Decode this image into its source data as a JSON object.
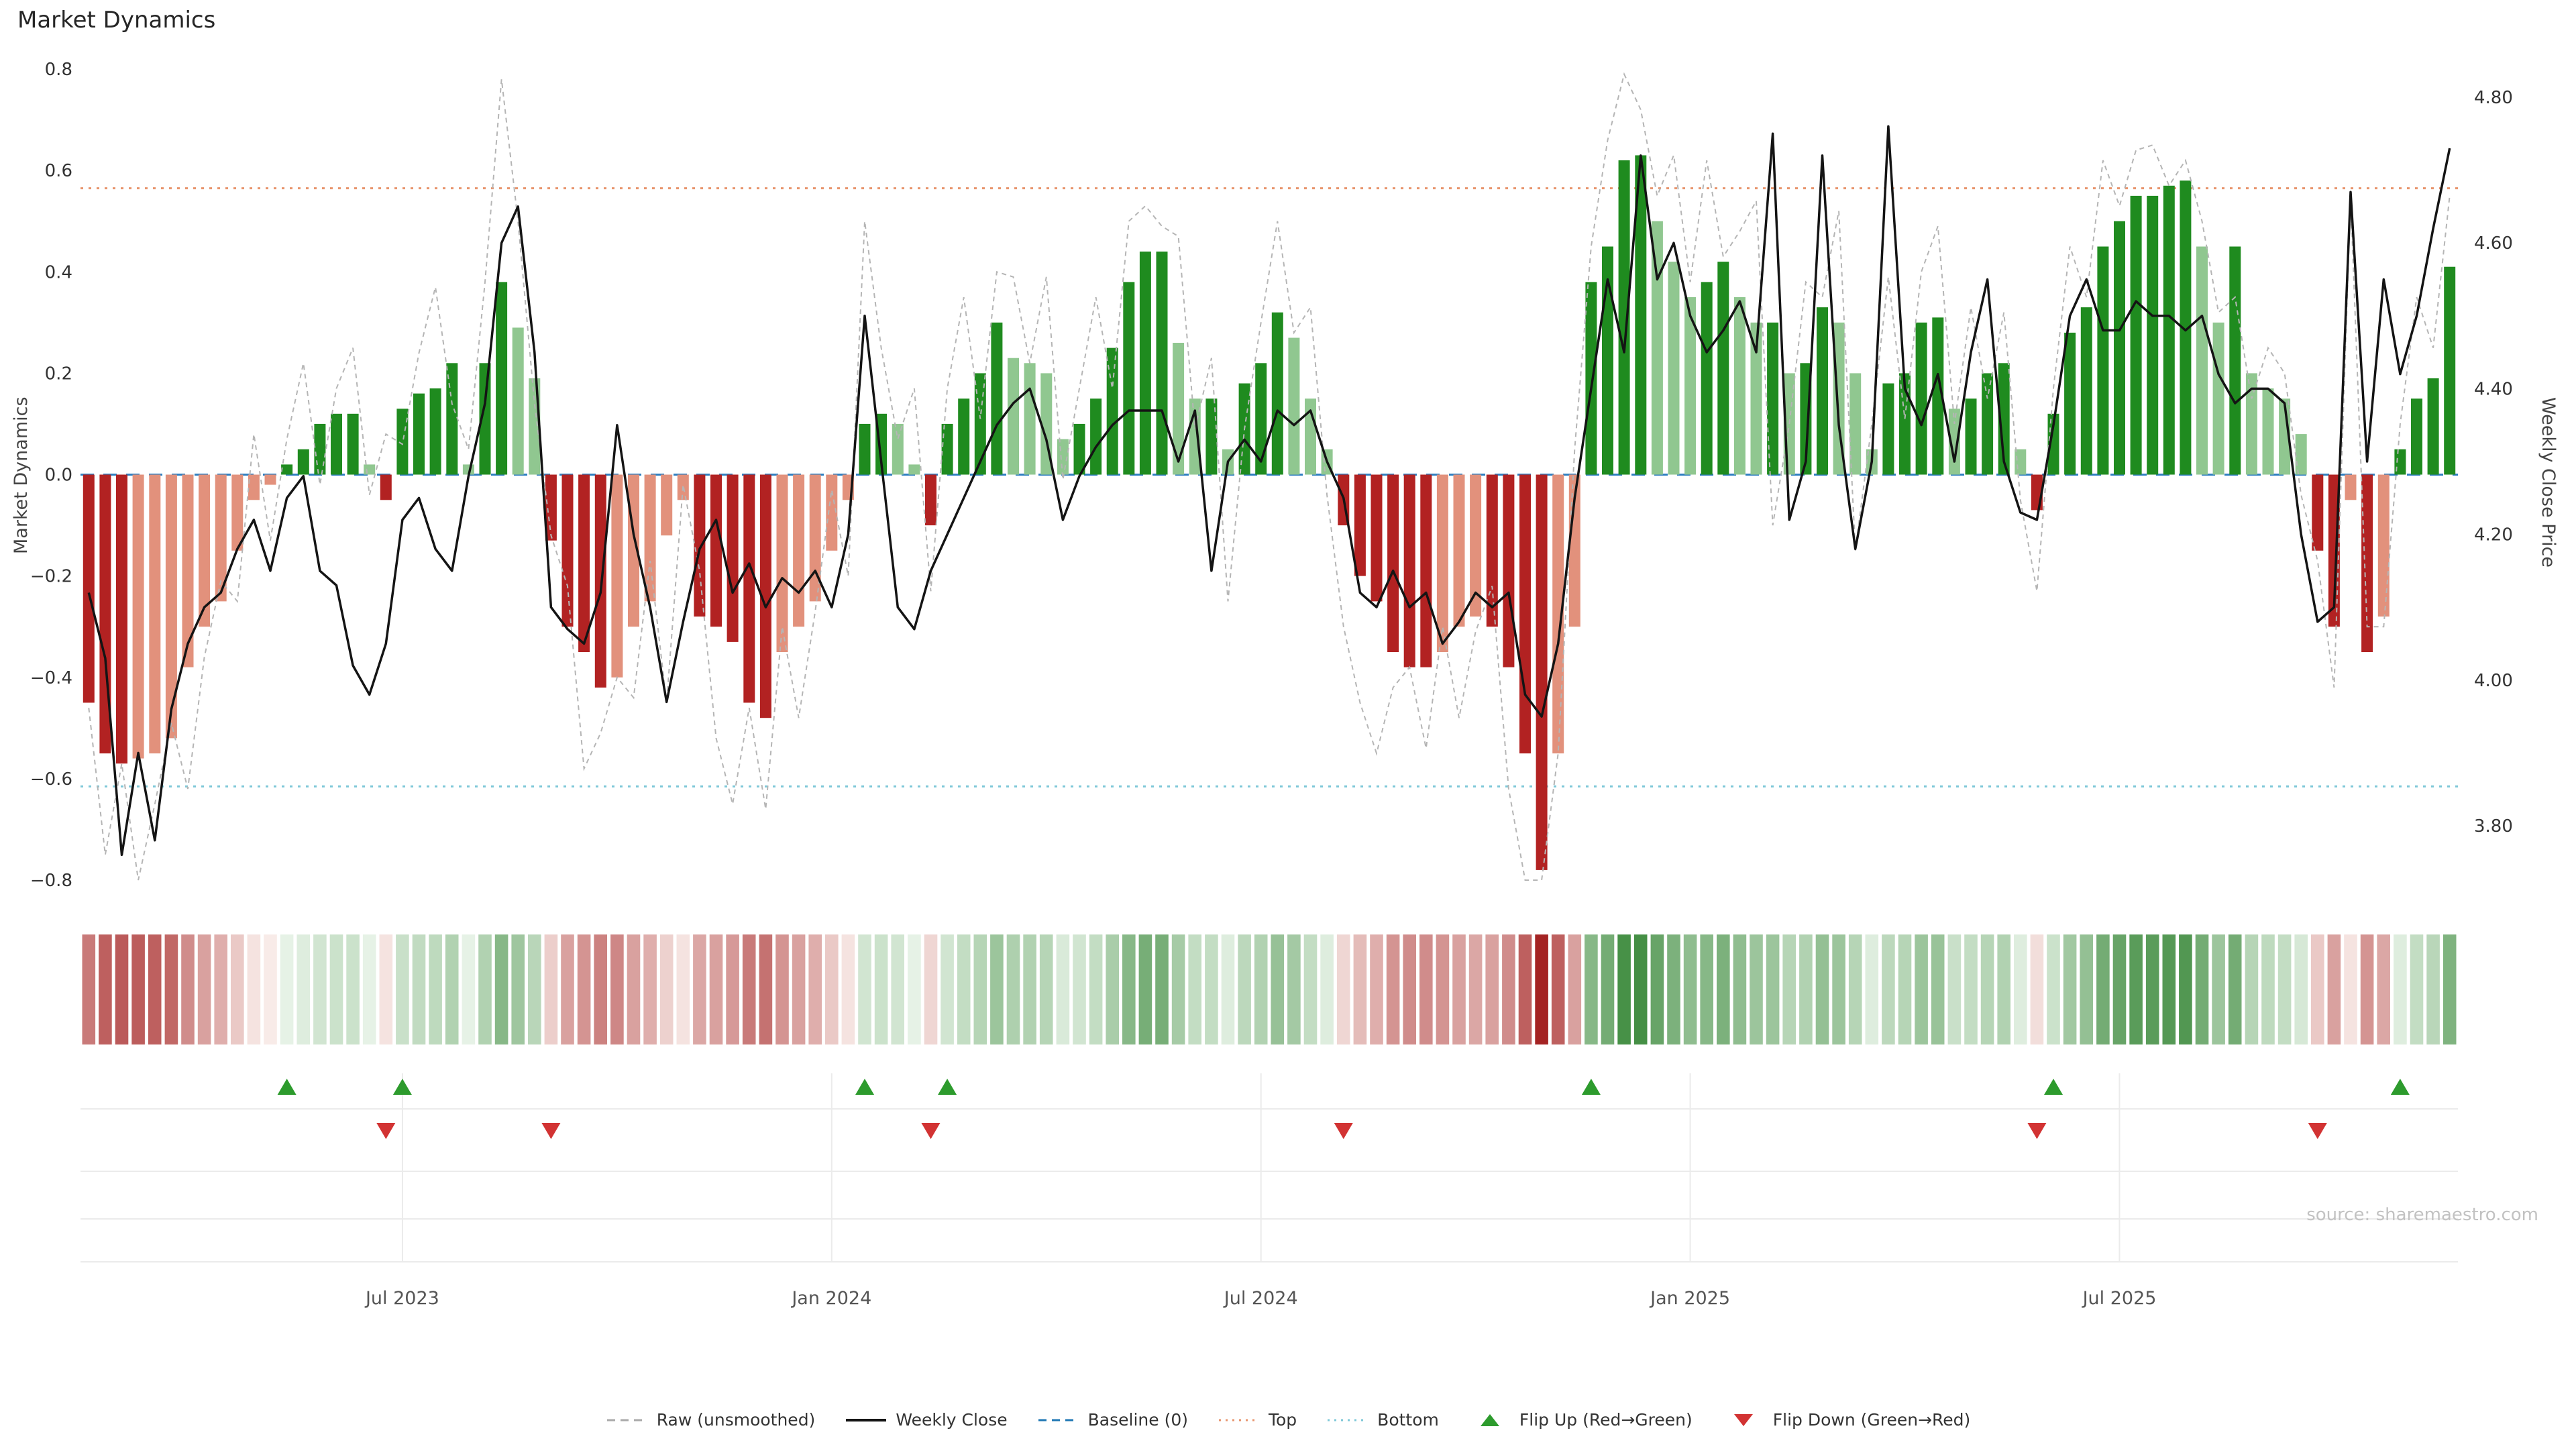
{
  "title": "Market Dynamics",
  "axes": {
    "left_label": "Market Dynamics",
    "right_label": "Weekly Close Price"
  },
  "source": "source: sharemaestro.com",
  "legend": [
    {
      "label": "Raw (unsmoothed)",
      "type": "line-dashed",
      "color": "#aaaaaa",
      "icon": "raw-line-swatch"
    },
    {
      "label": "Weekly Close",
      "type": "line-solid",
      "color": "#141414",
      "icon": "weekly-close-line-swatch"
    },
    {
      "label": "Baseline (0)",
      "type": "line-dashed",
      "color": "#1f77b4",
      "icon": "baseline-swatch"
    },
    {
      "label": "Top",
      "type": "line-dotted",
      "color": "#e8956d",
      "icon": "top-line-swatch"
    },
    {
      "label": "Bottom",
      "type": "line-dotted",
      "color": "#7ec8d8",
      "icon": "bottom-line-swatch"
    },
    {
      "label": "Flip Up (Red→Green)",
      "type": "triangle-up",
      "color": "#2d9b2d",
      "icon": "flip-up-triangle-icon"
    },
    {
      "label": "Flip Down (Green→Red)",
      "type": "triangle-down",
      "color": "#d23333",
      "icon": "flip-down-triangle-icon"
    }
  ],
  "chart_data": {
    "type": "bar",
    "title": "Market Dynamics",
    "ylabel_left": "Market Dynamics",
    "ylabel_right": "Weekly Close Price",
    "ylim_left": [
      -0.8,
      0.8
    ],
    "ylim_right": [
      3.8,
      4.8
    ],
    "baseline": 0,
    "top_threshold": 0.565,
    "bottom_threshold": -0.615,
    "left_ticks": [
      0.8,
      0.6,
      0.4,
      0.2,
      0,
      -0.2,
      -0.4,
      -0.6,
      -0.8
    ],
    "right_ticks": [
      4.8,
      4.6,
      4.4,
      4.2,
      4.0,
      3.8
    ],
    "x_tick_labels": [
      "Jul 2023",
      "Jan 2024",
      "Jul 2024",
      "Jan 2025",
      "Jul 2025"
    ],
    "x_tick_weeks": [
      20,
      46,
      72,
      98,
      124
    ],
    "n_weeks": 144,
    "flip_up_weeks": [
      13,
      20,
      48,
      53,
      92,
      120,
      141
    ],
    "flip_down_weeks": [
      19,
      29,
      52,
      77,
      119,
      136
    ],
    "series": [
      {
        "name": "Market Dynamics (bars)",
        "axis": "left",
        "values": [
          -0.45,
          -0.55,
          -0.57,
          -0.56,
          -0.55,
          -0.52,
          -0.38,
          -0.3,
          -0.25,
          -0.15,
          -0.05,
          -0.02,
          0.02,
          0.05,
          0.1,
          0.12,
          0.12,
          0.02,
          -0.05,
          0.13,
          0.16,
          0.17,
          0.22,
          0.02,
          0.22,
          0.38,
          0.29,
          0.19,
          -0.13,
          -0.3,
          -0.35,
          -0.42,
          -0.4,
          -0.3,
          -0.25,
          -0.12,
          -0.05,
          -0.28,
          -0.3,
          -0.33,
          -0.45,
          -0.48,
          -0.35,
          -0.3,
          -0.25,
          -0.15,
          -0.05,
          0.1,
          0.12,
          0.1,
          0.02,
          -0.1,
          0.1,
          0.15,
          0.2,
          0.3,
          0.23,
          0.22,
          0.2,
          0.07,
          0.1,
          0.15,
          0.25,
          0.38,
          0.44,
          0.44,
          0.26,
          0.15,
          0.15,
          0.05,
          0.18,
          0.22,
          0.32,
          0.27,
          0.15,
          0.05,
          -0.1,
          -0.2,
          -0.25,
          -0.35,
          -0.38,
          -0.38,
          -0.35,
          -0.3,
          -0.28,
          -0.3,
          -0.38,
          -0.55,
          -0.78,
          -0.55,
          -0.3,
          0.38,
          0.45,
          0.62,
          0.63,
          0.5,
          0.42,
          0.35,
          0.38,
          0.42,
          0.35,
          0.3,
          0.3,
          0.2,
          0.22,
          0.33,
          0.3,
          0.2,
          0.05,
          0.18,
          0.2,
          0.3,
          0.31,
          0.13,
          0.15,
          0.2,
          0.22,
          0.05,
          -0.07,
          0.12,
          0.28,
          0.33,
          0.45,
          0.5,
          0.55,
          0.55,
          0.57,
          0.58,
          0.45,
          0.3,
          0.45,
          0.2,
          0.17,
          0.15,
          0.08,
          -0.15,
          -0.3,
          -0.05,
          -0.35,
          -0.28,
          0.05,
          0.15,
          0.19,
          0.41
        ]
      },
      {
        "name": "Raw (unsmoothed)",
        "axis": "left",
        "values": [
          -0.46,
          -0.75,
          -0.57,
          -0.8,
          -0.65,
          -0.49,
          -0.62,
          -0.36,
          -0.21,
          -0.25,
          0.08,
          -0.13,
          0.07,
          0.22,
          -0.02,
          0.17,
          0.25,
          -0.04,
          0.08,
          0.06,
          0.24,
          0.37,
          0.14,
          0.05,
          0.38,
          0.78,
          0.5,
          0.14,
          -0.12,
          -0.22,
          -0.58,
          -0.51,
          -0.4,
          -0.44,
          -0.17,
          -0.45,
          -0.02,
          -0.19,
          -0.52,
          -0.65,
          -0.46,
          -0.66,
          -0.3,
          -0.48,
          -0.27,
          -0.03,
          -0.2,
          0.5,
          0.25,
          0.07,
          0.17,
          -0.23,
          0.17,
          0.35,
          0.11,
          0.4,
          0.39,
          0.22,
          0.39,
          -0.01,
          0.17,
          0.35,
          0.17,
          0.5,
          0.53,
          0.49,
          0.47,
          0.09,
          0.23,
          -0.25,
          0.09,
          0.3,
          0.5,
          0.28,
          0.33,
          -0.04,
          -0.3,
          -0.45,
          -0.55,
          -0.42,
          -0.38,
          -0.54,
          -0.3,
          -0.48,
          -0.31,
          -0.22,
          -0.62,
          -0.84,
          -0.82,
          -0.55,
          0.05,
          0.45,
          0.66,
          0.79,
          0.72,
          0.55,
          0.63,
          0.38,
          0.62,
          0.43,
          0.48,
          0.54,
          -0.1,
          0.1,
          0.38,
          0.35,
          0.52,
          -0.15,
          0.1,
          0.39,
          0.11,
          0.4,
          0.49,
          0.1,
          0.33,
          0.15,
          0.32,
          -0.05,
          -0.23,
          0.17,
          0.45,
          0.35,
          0.62,
          0.53,
          0.64,
          0.65,
          0.57,
          0.62,
          0.5,
          0.32,
          0.35,
          0.15,
          0.25,
          0.2,
          -0.04,
          -0.17,
          -0.42,
          0.55,
          -0.3,
          -0.3,
          0.1,
          0.35,
          0.25,
          0.55
        ]
      },
      {
        "name": "Weekly Close",
        "axis": "right",
        "values": [
          4.12,
          4.03,
          3.76,
          3.9,
          3.78,
          3.96,
          4.05,
          4.1,
          4.12,
          4.18,
          4.22,
          4.15,
          4.25,
          4.28,
          4.15,
          4.13,
          4.02,
          3.98,
          4.05,
          4.22,
          4.25,
          4.18,
          4.15,
          4.28,
          4.38,
          4.6,
          4.65,
          4.45,
          4.1,
          4.07,
          4.05,
          4.12,
          4.35,
          4.2,
          4.1,
          3.97,
          4.08,
          4.18,
          4.22,
          4.12,
          4.16,
          4.1,
          4.14,
          4.12,
          4.15,
          4.1,
          4.2,
          4.5,
          4.3,
          4.1,
          4.07,
          4.15,
          4.2,
          4.25,
          4.3,
          4.35,
          4.38,
          4.4,
          4.33,
          4.22,
          4.28,
          4.32,
          4.35,
          4.37,
          4.37,
          4.37,
          4.3,
          4.37,
          4.15,
          4.3,
          4.33,
          4.3,
          4.37,
          4.35,
          4.37,
          4.3,
          4.25,
          4.12,
          4.1,
          4.15,
          4.1,
          4.12,
          4.05,
          4.08,
          4.12,
          4.1,
          4.12,
          3.98,
          3.95,
          4.05,
          4.25,
          4.4,
          4.55,
          4.45,
          4.72,
          4.55,
          4.6,
          4.5,
          4.45,
          4.48,
          4.52,
          4.45,
          4.75,
          4.22,
          4.3,
          4.72,
          4.35,
          4.18,
          4.3,
          4.76,
          4.4,
          4.35,
          4.42,
          4.3,
          4.45,
          4.55,
          4.3,
          4.23,
          4.22,
          4.35,
          4.5,
          4.55,
          4.48,
          4.48,
          4.52,
          4.5,
          4.5,
          4.48,
          4.5,
          4.42,
          4.38,
          4.4,
          4.4,
          4.38,
          4.2,
          4.08,
          4.1,
          4.67,
          4.3,
          4.55,
          4.42,
          4.5,
          4.62,
          4.73
        ]
      }
    ]
  }
}
